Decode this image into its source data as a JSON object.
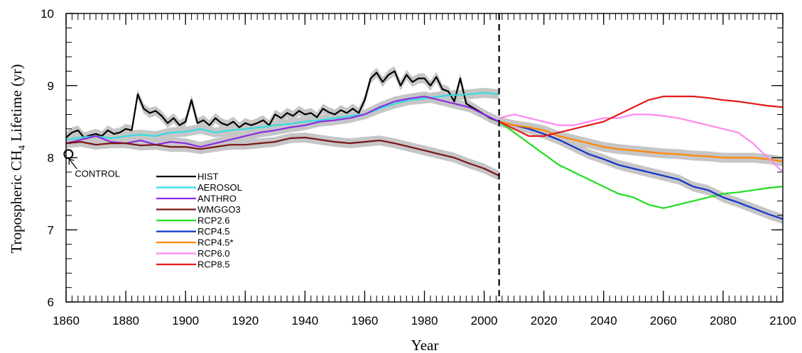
{
  "chart_data": {
    "type": "line",
    "title": "",
    "xlabel": "Year",
    "ylabel_prefix": "Tropospheric CH",
    "ylabel_sub": "4",
    "ylabel_suffix": " Lifetime (yr)",
    "xlim": [
      1860,
      2100
    ],
    "ylim": [
      6,
      10
    ],
    "xticks": [
      1860,
      1880,
      1900,
      1920,
      1940,
      1960,
      1980,
      2000,
      2020,
      2040,
      2060,
      2080,
      2100
    ],
    "yticks": [
      6,
      7,
      8,
      9,
      10
    ],
    "minor_x_step": 2,
    "minor_y_step": 0.2,
    "vline_x": 2005,
    "control": {
      "label": "CONTROL",
      "x": 1860.8,
      "y": 8.05
    },
    "legend_position": "lower-left",
    "series": [
      {
        "name": "HIST",
        "color": "#000000",
        "band": true,
        "x": [
          1860,
          1862,
          1864,
          1866,
          1868,
          1870,
          1872,
          1874,
          1876,
          1878,
          1880,
          1882,
          1884,
          1886,
          1888,
          1890,
          1892,
          1894,
          1896,
          1898,
          1900,
          1902,
          1904,
          1906,
          1908,
          1910,
          1912,
          1914,
          1916,
          1918,
          1920,
          1922,
          1924,
          1926,
          1928,
          1930,
          1932,
          1934,
          1936,
          1938,
          1940,
          1942,
          1944,
          1946,
          1948,
          1950,
          1952,
          1954,
          1956,
          1958,
          1960,
          1962,
          1964,
          1966,
          1968,
          1970,
          1972,
          1974,
          1976,
          1978,
          1980,
          1982,
          1984,
          1986,
          1988,
          1990,
          1992,
          1994,
          1996,
          1998,
          2000,
          2002,
          2005
        ],
        "y": [
          8.28,
          8.35,
          8.38,
          8.28,
          8.31,
          8.33,
          8.3,
          8.38,
          8.33,
          8.35,
          8.4,
          8.38,
          8.88,
          8.68,
          8.62,
          8.65,
          8.58,
          8.48,
          8.55,
          8.45,
          8.5,
          8.8,
          8.48,
          8.52,
          8.45,
          8.55,
          8.48,
          8.45,
          8.5,
          8.42,
          8.48,
          8.45,
          8.48,
          8.52,
          8.45,
          8.6,
          8.55,
          8.62,
          8.58,
          8.65,
          8.6,
          8.62,
          8.56,
          8.68,
          8.63,
          8.6,
          8.66,
          8.62,
          8.68,
          8.62,
          8.8,
          9.1,
          9.18,
          9.05,
          9.15,
          9.2,
          9.0,
          9.15,
          9.05,
          9.1,
          9.1,
          9.0,
          9.12,
          8.95,
          8.92,
          8.78,
          9.1,
          8.75,
          8.7,
          8.65,
          8.6,
          8.55,
          8.5
        ]
      },
      {
        "name": "AEROSOL",
        "color": "#33dde0",
        "band": true,
        "x": [
          1860,
          1865,
          1870,
          1875,
          1880,
          1885,
          1890,
          1895,
          1900,
          1905,
          1910,
          1915,
          1920,
          1925,
          1930,
          1935,
          1940,
          1945,
          1950,
          1955,
          1960,
          1965,
          1970,
          1975,
          1980,
          1985,
          1990,
          1995,
          2000,
          2005
        ],
        "y": [
          8.25,
          8.28,
          8.3,
          8.27,
          8.3,
          8.32,
          8.3,
          8.35,
          8.36,
          8.4,
          8.35,
          8.38,
          8.4,
          8.42,
          8.45,
          8.47,
          8.5,
          8.52,
          8.55,
          8.58,
          8.6,
          8.68,
          8.75,
          8.8,
          8.82,
          8.85,
          8.87,
          8.88,
          8.9,
          8.88
        ]
      },
      {
        "name": "ANTHRO",
        "color": "#8a2be2",
        "band": true,
        "x": [
          1860,
          1865,
          1870,
          1875,
          1880,
          1885,
          1890,
          1895,
          1900,
          1905,
          1910,
          1915,
          1920,
          1925,
          1930,
          1935,
          1940,
          1945,
          1950,
          1955,
          1960,
          1965,
          1970,
          1975,
          1980,
          1985,
          1990,
          1995,
          2000,
          2005
        ],
        "y": [
          8.2,
          8.25,
          8.3,
          8.22,
          8.2,
          8.24,
          8.18,
          8.22,
          8.2,
          8.15,
          8.2,
          8.25,
          8.3,
          8.35,
          8.38,
          8.42,
          8.45,
          8.5,
          8.52,
          8.55,
          8.6,
          8.7,
          8.78,
          8.82,
          8.85,
          8.8,
          8.75,
          8.7,
          8.6,
          8.5
        ]
      },
      {
        "name": "WMGGO3",
        "color": "#7a1414",
        "band": true,
        "x": [
          1860,
          1865,
          1870,
          1875,
          1880,
          1885,
          1890,
          1895,
          1900,
          1905,
          1910,
          1915,
          1920,
          1925,
          1930,
          1935,
          1940,
          1945,
          1950,
          1955,
          1960,
          1965,
          1970,
          1975,
          1980,
          1985,
          1990,
          1995,
          2000,
          2005
        ],
        "y": [
          8.2,
          8.22,
          8.18,
          8.2,
          8.2,
          8.17,
          8.18,
          8.15,
          8.15,
          8.12,
          8.15,
          8.18,
          8.18,
          8.2,
          8.22,
          8.27,
          8.28,
          8.25,
          8.22,
          8.2,
          8.22,
          8.24,
          8.2,
          8.15,
          8.1,
          8.05,
          8.0,
          7.92,
          7.85,
          7.75
        ]
      },
      {
        "name": "RCP2.6",
        "color": "#22dd22",
        "band": false,
        "x": [
          2005,
          2010,
          2015,
          2020,
          2025,
          2030,
          2035,
          2040,
          2045,
          2050,
          2055,
          2060,
          2065,
          2070,
          2075,
          2080,
          2085,
          2090,
          2095,
          2100
        ],
        "y": [
          8.5,
          8.35,
          8.2,
          8.05,
          7.9,
          7.8,
          7.7,
          7.6,
          7.5,
          7.45,
          7.35,
          7.3,
          7.35,
          7.4,
          7.45,
          7.5,
          7.52,
          7.55,
          7.58,
          7.6
        ]
      },
      {
        "name": "RCP4.5",
        "color": "#1133cc",
        "band": true,
        "x": [
          2005,
          2010,
          2015,
          2020,
          2025,
          2030,
          2035,
          2040,
          2045,
          2050,
          2055,
          2060,
          2065,
          2070,
          2075,
          2080,
          2085,
          2090,
          2095,
          2100
        ],
        "y": [
          8.5,
          8.45,
          8.4,
          8.33,
          8.25,
          8.15,
          8.05,
          7.98,
          7.9,
          7.85,
          7.8,
          7.75,
          7.7,
          7.6,
          7.55,
          7.45,
          7.38,
          7.3,
          7.22,
          7.15
        ]
      },
      {
        "name": "RCP4.5*",
        "color": "#ff8800",
        "band": true,
        "x": [
          2005,
          2010,
          2015,
          2020,
          2025,
          2030,
          2035,
          2040,
          2045,
          2050,
          2055,
          2060,
          2065,
          2070,
          2075,
          2080,
          2085,
          2090,
          2095,
          2100
        ],
        "y": [
          8.5,
          8.45,
          8.42,
          8.38,
          8.3,
          8.25,
          8.2,
          8.15,
          8.12,
          8.1,
          8.08,
          8.06,
          8.05,
          8.03,
          8.02,
          8.0,
          8.0,
          8.0,
          7.98,
          7.95
        ]
      },
      {
        "name": "RCP6.0",
        "color": "#ff88ee",
        "band": false,
        "x": [
          2005,
          2010,
          2015,
          2020,
          2025,
          2030,
          2035,
          2040,
          2045,
          2050,
          2055,
          2060,
          2065,
          2070,
          2075,
          2080,
          2085,
          2090,
          2095,
          2100
        ],
        "y": [
          8.55,
          8.6,
          8.55,
          8.5,
          8.45,
          8.45,
          8.5,
          8.55,
          8.55,
          8.6,
          8.6,
          8.58,
          8.55,
          8.5,
          8.45,
          8.4,
          8.35,
          8.2,
          8.0,
          7.8
        ]
      },
      {
        "name": "RCP8.5",
        "color": "#e31a1a",
        "band": false,
        "x": [
          2005,
          2010,
          2015,
          2020,
          2025,
          2030,
          2035,
          2040,
          2045,
          2050,
          2055,
          2060,
          2065,
          2070,
          2075,
          2080,
          2085,
          2090,
          2095,
          2100
        ],
        "y": [
          8.5,
          8.4,
          8.3,
          8.3,
          8.35,
          8.4,
          8.45,
          8.5,
          8.6,
          8.7,
          8.8,
          8.85,
          8.85,
          8.85,
          8.83,
          8.8,
          8.78,
          8.75,
          8.72,
          8.7
        ]
      }
    ]
  }
}
